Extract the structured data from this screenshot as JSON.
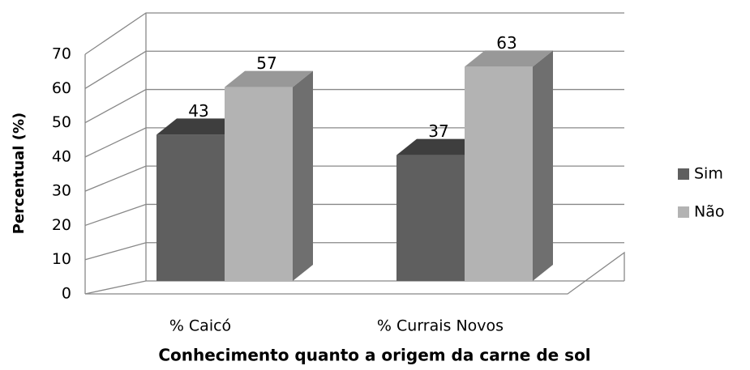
{
  "chart_data": {
    "type": "bar3d",
    "categories": [
      "% Caicó",
      "% Currais Novos"
    ],
    "series": [
      {
        "name": "Sim",
        "color": "#5f5f5f",
        "values": [
          43,
          37
        ]
      },
      {
        "name": "Não",
        "color": "#b3b3b3",
        "values": [
          57,
          63
        ]
      }
    ],
    "xlabel": "Conhecimento quanto a origem da carne de sol",
    "ylabel": "Percentual (%)",
    "ylim": [
      0,
      70
    ],
    "yticks": [
      0,
      10,
      20,
      30,
      40,
      50,
      60,
      70
    ],
    "grid": true,
    "legend": "right"
  }
}
